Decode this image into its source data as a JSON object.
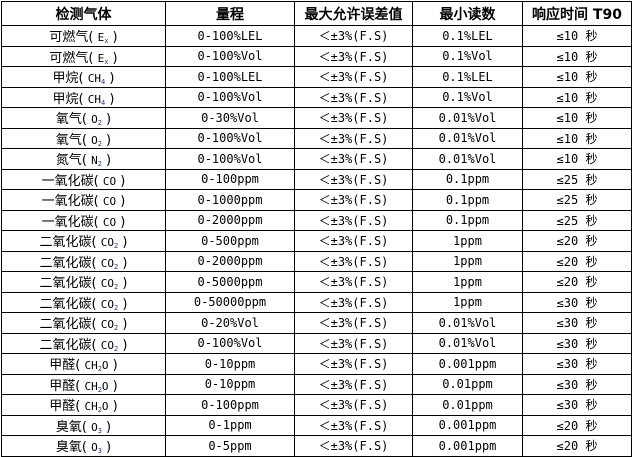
{
  "headers": [
    "检测气体",
    "量程",
    "最大允许误差值",
    "最小读数",
    "响应时间 T90"
  ],
  "rows": [
    {
      "gas": "可燃气",
      "f_pre": "E",
      "f_sub": "x",
      "f_post": "",
      "range": "0-100%LEL",
      "error": "＜±3%(F.S)",
      "min": "0.1%LEL",
      "t90": "≤10 秒"
    },
    {
      "gas": "可燃气",
      "f_pre": "E",
      "f_sub": "x",
      "f_post": "",
      "range": "0-100%Vol",
      "error": "＜±3%(F.S)",
      "min": "0.1%Vol",
      "t90": "≤10 秒"
    },
    {
      "gas": "甲烷",
      "f_pre": "CH",
      "f_sub": "4",
      "f_post": "",
      "range": "0-100%LEL",
      "error": "＜±3%(F.S)",
      "min": "0.1%LEL",
      "t90": "≤10 秒"
    },
    {
      "gas": "甲烷",
      "f_pre": "CH",
      "f_sub": "4",
      "f_post": "",
      "range": "0-100%Vol",
      "error": "＜±3%(F.S)",
      "min": "0.1%Vol",
      "t90": "≤10 秒"
    },
    {
      "gas": "氧气",
      "f_pre": "O",
      "f_sub": "2",
      "f_post": "",
      "range": "0-30%Vol",
      "error": "＜±3%(F.S)",
      "min": "0.01%Vol",
      "t90": "≤10 秒"
    },
    {
      "gas": "氧气",
      "f_pre": "O",
      "f_sub": "2",
      "f_post": "",
      "range": "0-100%Vol",
      "error": "＜±3%(F.S)",
      "min": "0.01%Vol",
      "t90": "≤10 秒"
    },
    {
      "gas": "氮气",
      "f_pre": "N",
      "f_sub": "2",
      "f_post": "",
      "range": "0-100%Vol",
      "error": "＜±3%(F.S)",
      "min": "0.01%Vol",
      "t90": "≤10 秒"
    },
    {
      "gas": "一氧化碳",
      "f_pre": "CO",
      "f_sub": "",
      "f_post": "",
      "range": "0-100ppm",
      "error": "＜±3%(F.S)",
      "min": "0.1ppm",
      "t90": "≤25 秒"
    },
    {
      "gas": "一氧化碳",
      "f_pre": "CO",
      "f_sub": "",
      "f_post": "",
      "range": "0-1000ppm",
      "error": "＜±3%(F.S)",
      "min": "0.1ppm",
      "t90": "≤25 秒"
    },
    {
      "gas": "一氧化碳",
      "f_pre": "CO",
      "f_sub": "",
      "f_post": "",
      "range": "0-2000ppm",
      "error": "＜±3%(F.S)",
      "min": "0.1ppm",
      "t90": "≤25 秒"
    },
    {
      "gas": "二氧化碳",
      "f_pre": "CO",
      "f_sub": "2",
      "f_post": "",
      "range": "0-500ppm",
      "error": "＜±3%(F.S)",
      "min": "1ppm",
      "t90": "≤20 秒"
    },
    {
      "gas": "二氧化碳",
      "f_pre": "CO",
      "f_sub": "2",
      "f_post": "",
      "range": "0-2000ppm",
      "error": "＜±3%(F.S)",
      "min": "1ppm",
      "t90": "≤20 秒"
    },
    {
      "gas": "二氧化碳",
      "f_pre": "CO",
      "f_sub": "2",
      "f_post": "",
      "range": "0-5000ppm",
      "error": "＜±3%(F.S)",
      "min": "1ppm",
      "t90": "≤20 秒"
    },
    {
      "gas": "二氧化碳",
      "f_pre": "CO",
      "f_sub": "2",
      "f_post": "",
      "range": "0-50000ppm",
      "error": "＜±3%(F.S)",
      "min": "1ppm",
      "t90": "≤30 秒"
    },
    {
      "gas": "二氧化碳",
      "f_pre": "CO",
      "f_sub": "2",
      "f_post": "",
      "range": "0-20%Vol",
      "error": "＜±3%(F.S)",
      "min": "0.01%Vol",
      "t90": "≤30 秒"
    },
    {
      "gas": "二氧化碳",
      "f_pre": "CO",
      "f_sub": "2",
      "f_post": "",
      "range": "0-100%Vol",
      "error": "＜±3%(F.S)",
      "min": "0.01%Vol",
      "t90": "≤30 秒"
    },
    {
      "gas": "甲醛",
      "f_pre": "CH",
      "f_sub": "2",
      "f_post": "O",
      "range": "0-10ppm",
      "error": "＜±3%(F.S)",
      "min": "0.001ppm",
      "t90": "≤30 秒"
    },
    {
      "gas": "甲醛",
      "f_pre": "CH",
      "f_sub": "2",
      "f_post": "O",
      "range": "0-10ppm",
      "error": "＜±3%(F.S)",
      "min": "0.01ppm",
      "t90": "≤30 秒"
    },
    {
      "gas": "甲醛",
      "f_pre": "CH",
      "f_sub": "2",
      "f_post": "O",
      "range": "0-100ppm",
      "error": "＜±3%(F.S)",
      "min": "0.01ppm",
      "t90": "≤30 秒"
    },
    {
      "gas": "臭氧",
      "f_pre": "O",
      "f_sub": "3",
      "f_post": "",
      "range": "0-1ppm",
      "error": "＜±3%(F.S)",
      "min": "0.001ppm",
      "t90": "≤20 秒"
    },
    {
      "gas": "臭氧",
      "f_pre": "O",
      "f_sub": "3",
      "f_post": "",
      "range": "0-5ppm",
      "error": "＜±3%(F.S)",
      "min": "0.001ppm",
      "t90": "≤20 秒"
    }
  ]
}
